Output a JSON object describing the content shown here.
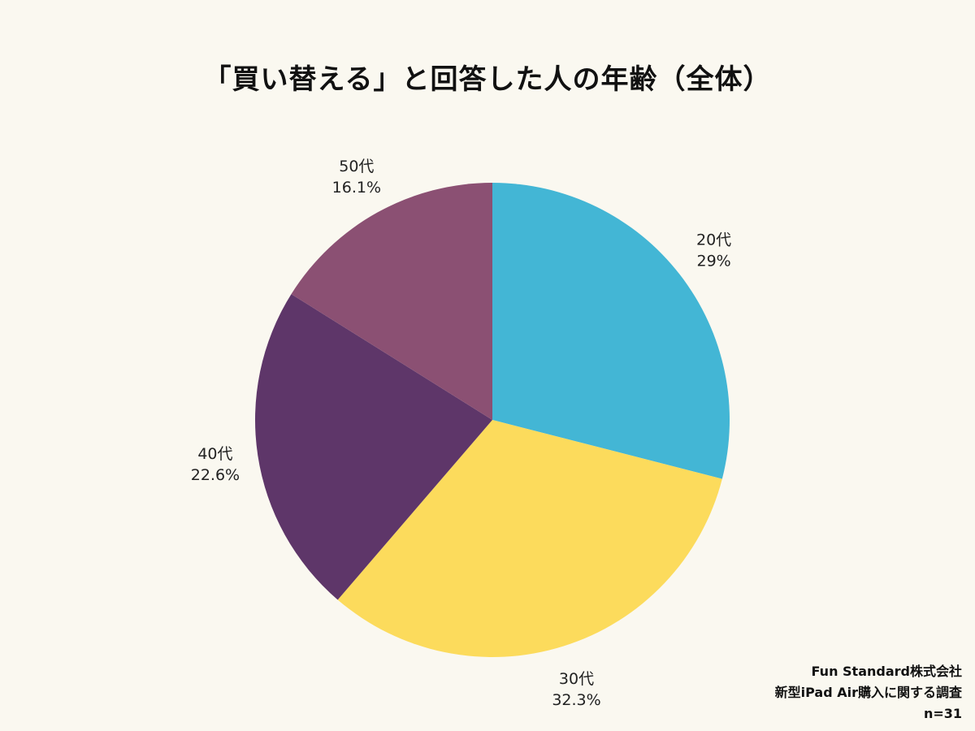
{
  "title": "「買い替える」と回答した人の年齢（全体）",
  "chart_data": {
    "type": "pie",
    "categories": [
      "20代",
      "30代",
      "40代",
      "50代"
    ],
    "values": [
      29,
      32.3,
      22.6,
      16.1
    ],
    "value_labels": [
      "29%",
      "32.3%",
      "22.6%",
      "16.1%"
    ],
    "colors": [
      "#43b6d5",
      "#fcdb5c",
      "#5e3669",
      "#8b5073"
    ],
    "start_angle": "12 o'clock",
    "direction": "clockwise",
    "legend": "none"
  },
  "footer": {
    "company": "Fun Standard株式会社",
    "survey": "新型iPad Air購入に関する調査",
    "n": "n=31"
  }
}
